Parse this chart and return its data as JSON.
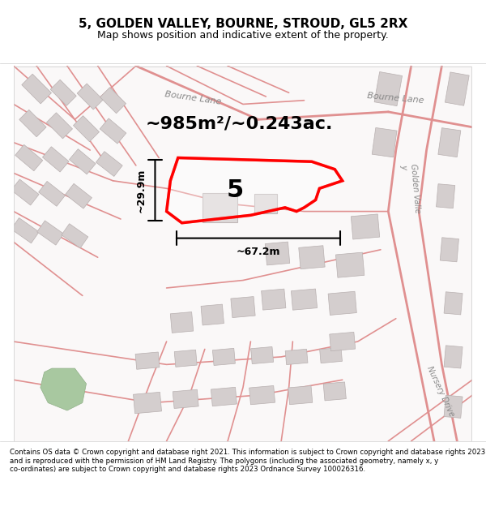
{
  "title": "5, GOLDEN VALLEY, BOURNE, STROUD, GL5 2RX",
  "subtitle": "Map shows position and indicative extent of the property.",
  "footer": "Contains OS data © Crown copyright and database right 2021. This information is subject to Crown copyright and database rights 2023 and is reproduced with the permission of HM Land Registry. The polygons (including the associated geometry, namely x, y co-ordinates) are subject to Crown copyright and database rights 2023 Ordnance Survey 100026316.",
  "area_label": "~985m²/~0.243ac.",
  "width_label": "~67.2m",
  "height_label": "~29.9m",
  "property_number": "5",
  "bg_color": "#f5f0f0",
  "map_bg": "#ffffff",
  "road_color": "#e8a090",
  "road_light": "#f0c0b0",
  "building_color": "#cccccc",
  "highlight_color": "#ff0000",
  "text_color": "#000000",
  "light_road_stroke": "#e08070"
}
